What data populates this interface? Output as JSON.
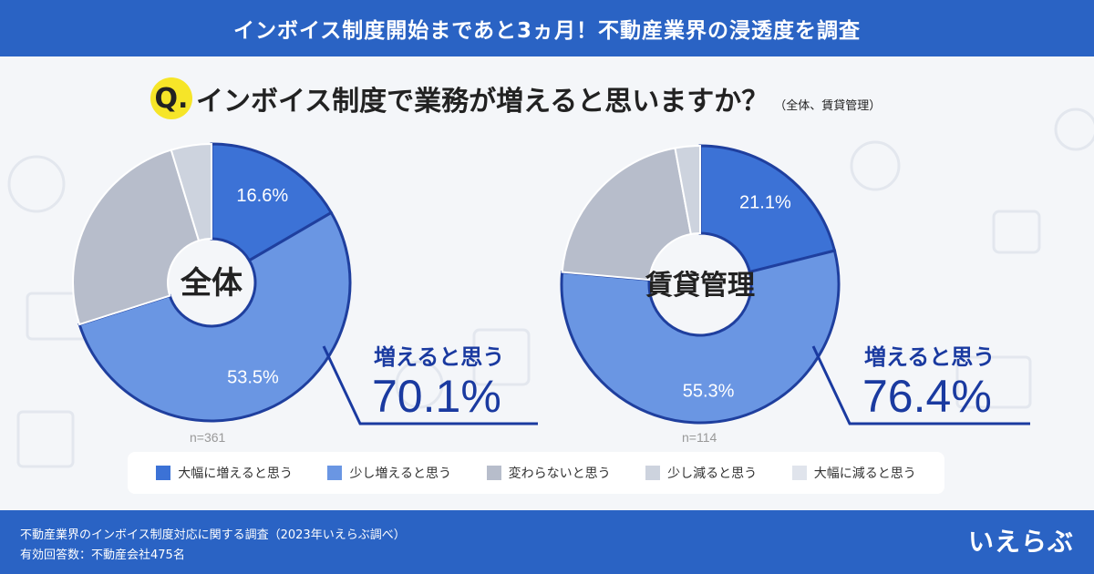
{
  "header": {
    "title": "インボイス制度開始まであと3ヵ月！不動産業界の浸透度を調査"
  },
  "question": {
    "mark": "Q.",
    "text": "インボイス制度で業務が増えると思いますか？",
    "sub": "（全体、賃貸管理）"
  },
  "colors": {
    "greatly_increase": "#3c72d6",
    "slightly_increase": "#6a96e3",
    "no_change": "#b7bdcb",
    "slightly_decrease": "#cdd3de",
    "greatly_decrease": "#e0e4ec",
    "outline": "#1f3f9e",
    "accent": "#1a3aa0"
  },
  "legend": [
    {
      "label": "大幅に増えると思う",
      "color": "#3c72d6"
    },
    {
      "label": "少し増えると思う",
      "color": "#6a96e3"
    },
    {
      "label": "変わらないと思う",
      "color": "#b7bdcb"
    },
    {
      "label": "少し減ると思う",
      "color": "#cdd3de"
    },
    {
      "label": "大幅に減ると思う",
      "color": "#e0e4ec"
    }
  ],
  "chart_data": [
    {
      "type": "pie",
      "center_label": "全体",
      "n_label": "n=361",
      "summary_label": "増えると思う",
      "summary_value": "70.1%",
      "slices": [
        {
          "name": "大幅に増えると思う",
          "value": 16.6,
          "label": "16.6%"
        },
        {
          "name": "少し増えると思う",
          "value": 53.5,
          "label": "53.5%"
        },
        {
          "name": "変わらないと思う",
          "value": 25.2,
          "label": ""
        },
        {
          "name": "少し減ると思う",
          "value": 4.7,
          "label": ""
        },
        {
          "name": "大幅に減ると思う",
          "value": 0.0,
          "label": ""
        }
      ]
    },
    {
      "type": "pie",
      "center_label": "賃貸管理",
      "n_label": "n=114",
      "summary_label": "増えると思う",
      "summary_value": "76.4%",
      "slices": [
        {
          "name": "大幅に増えると思う",
          "value": 21.1,
          "label": "21.1%"
        },
        {
          "name": "少し増えると思う",
          "value": 55.3,
          "label": "55.3%"
        },
        {
          "name": "変わらないと思う",
          "value": 20.7,
          "label": ""
        },
        {
          "name": "少し減ると思う",
          "value": 2.9,
          "label": ""
        },
        {
          "name": "大幅に減ると思う",
          "value": 0.0,
          "label": ""
        }
      ]
    }
  ],
  "footer": {
    "line1": "不動産業界のインボイス制度対応に関する調査（2023年いえらぶ調べ）",
    "line2": "有効回答数：不動産会社475名",
    "logo": "いえらぶ"
  }
}
